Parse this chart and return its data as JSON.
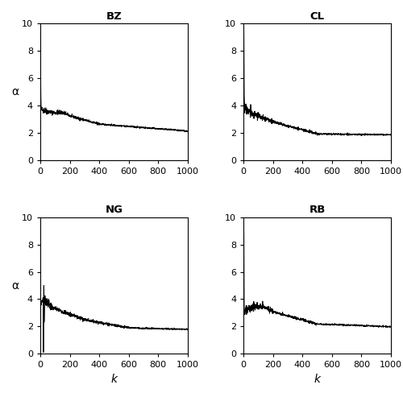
{
  "panels": [
    "BZ",
    "CL",
    "NG",
    "RB"
  ],
  "xlim": [
    0,
    1000
  ],
  "ylim": [
    0,
    10
  ],
  "xticks": [
    0,
    200,
    400,
    600,
    800,
    1000
  ],
  "yticks": [
    0,
    2,
    4,
    6,
    8,
    10
  ],
  "xlabel": "k",
  "ylabel": "α",
  "line_color": "black",
  "bg_color": "white",
  "title_fontsize": 9.5,
  "label_fontsize": 9,
  "tick_fontsize": 8,
  "fig_width": 5.0,
  "fig_height": 4.88
}
